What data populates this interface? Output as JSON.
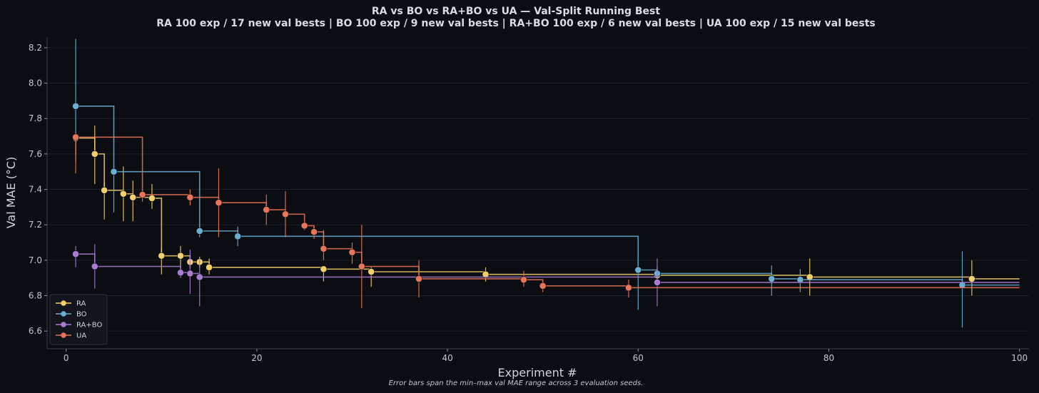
{
  "chart_data": {
    "type": "line",
    "title": "RA vs BO vs RA+BO vs UA — Val-Split Running Best",
    "subtitle": "RA 100 exp / 17 new val bests | BO 100 exp / 9 new val bests | RA+BO 100 exp / 6 new val bests | UA 100 exp / 15 new val bests",
    "xlabel": "Experiment #",
    "ylabel": "Val MAE (°C)",
    "footnote": "Error bars span the min–max val MAE range across 3 evaluation seeds.",
    "xlim": [
      -2,
      101
    ],
    "ylim": [
      6.5,
      8.26
    ],
    "xticks": [
      0,
      20,
      40,
      60,
      80,
      100
    ],
    "yticks": [
      6.6,
      6.8,
      7.0,
      7.2,
      7.4,
      7.6,
      7.8,
      8.0,
      8.2
    ],
    "grid": true,
    "legend_position": "lower-left",
    "line_end_x": 100,
    "series": [
      {
        "name": "RA",
        "color": "#f2d06b",
        "points": [
          {
            "x": 1,
            "y": 7.69,
            "lo": 7.59,
            "hi": 7.69
          },
          {
            "x": 3,
            "y": 7.6,
            "lo": 7.43,
            "hi": 7.76
          },
          {
            "x": 4,
            "y": 7.395,
            "lo": 7.23,
            "hi": 7.44
          },
          {
            "x": 6,
            "y": 7.375,
            "lo": 7.22,
            "hi": 7.53
          },
          {
            "x": 7,
            "y": 7.355,
            "lo": 7.22,
            "hi": 7.45
          },
          {
            "x": 9,
            "y": 7.35,
            "lo": 7.29,
            "hi": 7.43
          },
          {
            "x": 10,
            "y": 7.025,
            "lo": 6.92,
            "hi": 7.07
          },
          {
            "x": 12,
            "y": 7.025,
            "lo": 6.96,
            "hi": 7.08
          },
          {
            "x": 13,
            "y": 6.99,
            "lo": 6.96,
            "hi": 7.03
          },
          {
            "x": 14,
            "y": 6.99,
            "lo": 6.96,
            "hi": 7.02
          },
          {
            "x": 15,
            "y": 6.96,
            "lo": 6.92,
            "hi": 7.01
          },
          {
            "x": 27,
            "y": 6.95,
            "lo": 6.88,
            "hi": 6.96
          },
          {
            "x": 32,
            "y": 6.935,
            "lo": 6.85,
            "hi": 6.96
          },
          {
            "x": 44,
            "y": 6.92,
            "lo": 6.88,
            "hi": 6.96
          },
          {
            "x": 62,
            "y": 6.915,
            "lo": 6.88,
            "hi": 6.95
          },
          {
            "x": 78,
            "y": 6.905,
            "lo": 6.8,
            "hi": 7.01
          },
          {
            "x": 95,
            "y": 6.895,
            "lo": 6.8,
            "hi": 7.0
          }
        ]
      },
      {
        "name": "BO",
        "color": "#6ab0d2",
        "points": [
          {
            "x": 1,
            "y": 7.87,
            "lo": 7.55,
            "hi": 8.25
          },
          {
            "x": 5,
            "y": 7.5,
            "lo": 7.27,
            "hi": 7.5
          },
          {
            "x": 14,
            "y": 7.165,
            "lo": 7.13,
            "hi": 7.19
          },
          {
            "x": 18,
            "y": 7.135,
            "lo": 7.08,
            "hi": 7.19
          },
          {
            "x": 60,
            "y": 6.945,
            "lo": 6.72,
            "hi": 6.96
          },
          {
            "x": 62,
            "y": 6.925,
            "lo": 6.88,
            "hi": 6.96
          },
          {
            "x": 74,
            "y": 6.895,
            "lo": 6.8,
            "hi": 6.97
          },
          {
            "x": 77,
            "y": 6.89,
            "lo": 6.82,
            "hi": 6.95
          },
          {
            "x": 94,
            "y": 6.86,
            "lo": 6.62,
            "hi": 7.05
          }
        ]
      },
      {
        "name": "RA+BO",
        "color": "#a97bd1",
        "points": [
          {
            "x": 1,
            "y": 7.035,
            "lo": 6.96,
            "hi": 7.08
          },
          {
            "x": 3,
            "y": 6.965,
            "lo": 6.84,
            "hi": 7.09
          },
          {
            "x": 12,
            "y": 6.93,
            "lo": 6.9,
            "hi": 6.97
          },
          {
            "x": 13,
            "y": 6.925,
            "lo": 6.81,
            "hi": 7.06
          },
          {
            "x": 14,
            "y": 6.905,
            "lo": 6.74,
            "hi": 7.01
          },
          {
            "x": 62,
            "y": 6.875,
            "lo": 6.74,
            "hi": 7.01
          }
        ]
      },
      {
        "name": "UA",
        "color": "#e8755a",
        "points": [
          {
            "x": 1,
            "y": 7.695,
            "lo": 7.49,
            "hi": 7.72
          },
          {
            "x": 8,
            "y": 7.37,
            "lo": 7.33,
            "hi": 7.39
          },
          {
            "x": 13,
            "y": 7.355,
            "lo": 7.31,
            "hi": 7.4
          },
          {
            "x": 16,
            "y": 7.325,
            "lo": 7.13,
            "hi": 7.52
          },
          {
            "x": 21,
            "y": 7.285,
            "lo": 7.2,
            "hi": 7.37
          },
          {
            "x": 23,
            "y": 7.26,
            "lo": 7.13,
            "hi": 7.39
          },
          {
            "x": 25,
            "y": 7.195,
            "lo": 7.17,
            "hi": 7.22
          },
          {
            "x": 26,
            "y": 7.16,
            "lo": 7.12,
            "hi": 7.19
          },
          {
            "x": 27,
            "y": 7.065,
            "lo": 7.0,
            "hi": 7.17
          },
          {
            "x": 30,
            "y": 7.045,
            "lo": 6.98,
            "hi": 7.1
          },
          {
            "x": 31,
            "y": 6.965,
            "lo": 6.73,
            "hi": 7.2
          },
          {
            "x": 37,
            "y": 6.895,
            "lo": 6.79,
            "hi": 7.0
          },
          {
            "x": 48,
            "y": 6.89,
            "lo": 6.85,
            "hi": 6.94
          },
          {
            "x": 50,
            "y": 6.855,
            "lo": 6.82,
            "hi": 6.87
          },
          {
            "x": 59,
            "y": 6.845,
            "lo": 6.79,
            "hi": 6.89
          }
        ]
      }
    ]
  }
}
